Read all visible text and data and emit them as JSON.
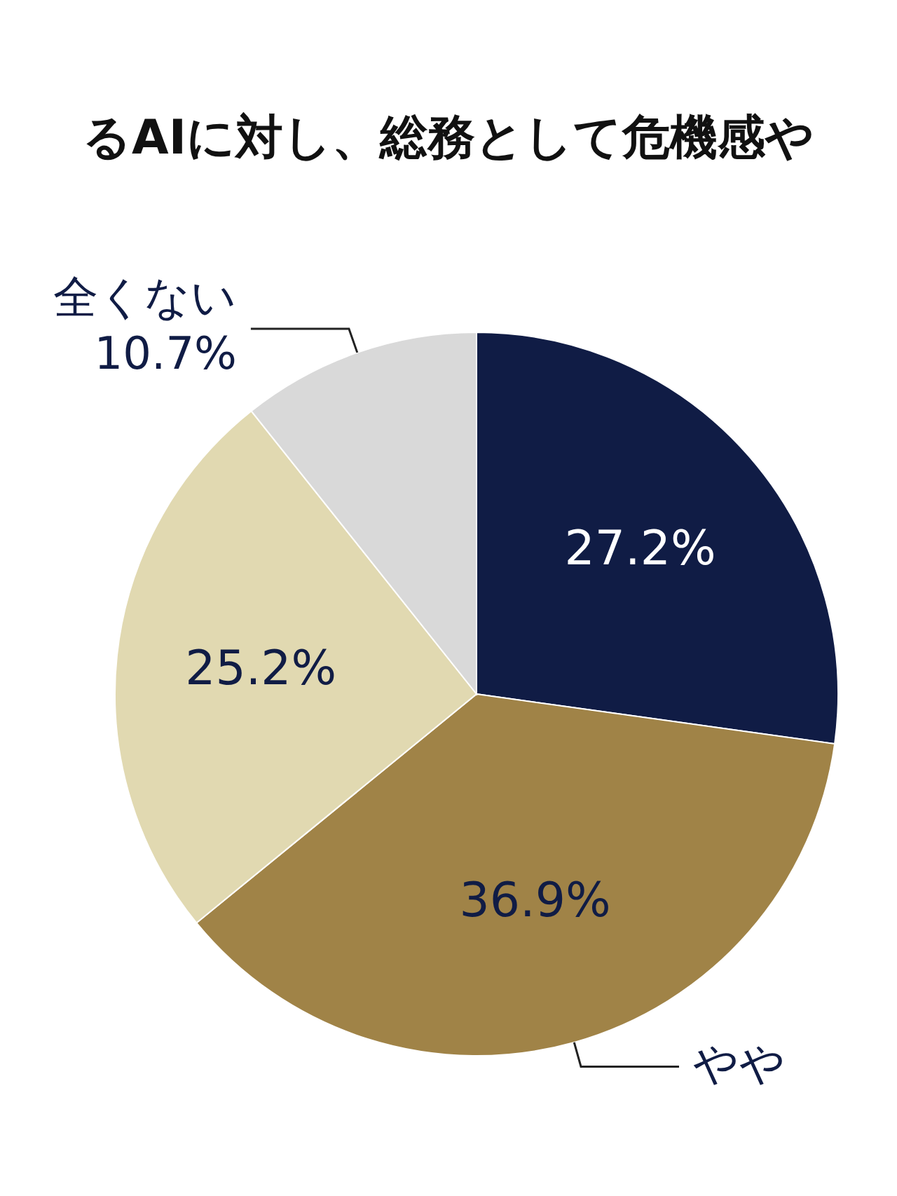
{
  "chart_data": {
    "type": "pie",
    "title": "るAIに対し、総務として危機感や",
    "categories": [
      null,
      "やや",
      null,
      "全くない"
    ],
    "values": [
      27.2,
      36.9,
      25.2,
      10.7
    ],
    "colors": [
      "#101c45",
      "#a08347",
      "#e1d9b1",
      "#d9d9d9"
    ],
    "value_labels": [
      "27.2%",
      "36.9%",
      "25.2%",
      "10.7%"
    ]
  }
}
